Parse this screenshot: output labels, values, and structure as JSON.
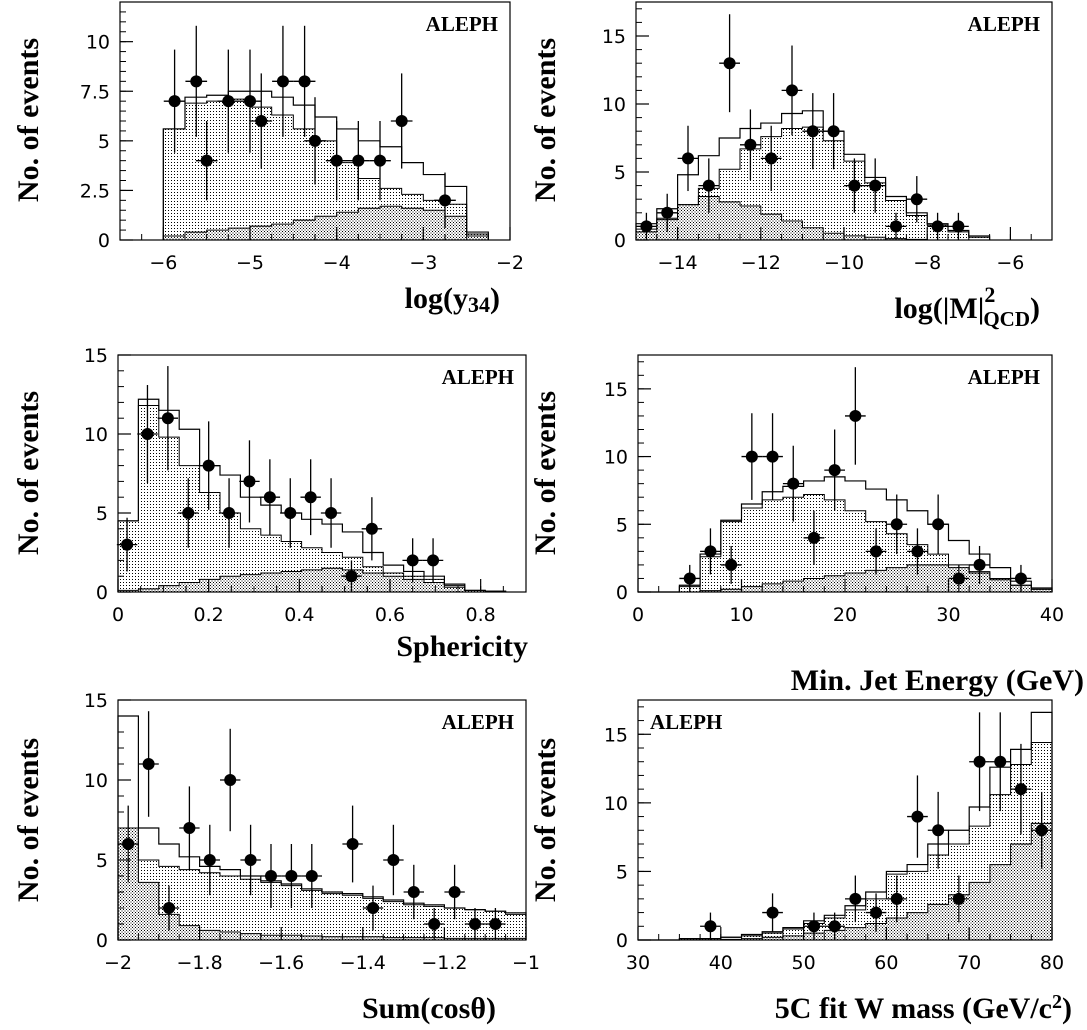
{
  "chart_data": [
    {
      "id": "p1",
      "type": "histogram",
      "experiment_label": "ALEPH",
      "label_corner": "top-right",
      "ylabel": "No. of events",
      "xlabel_main": "log(y",
      "xlabel_sub": "34",
      "xlabel_tail": ")",
      "xlim": [
        -6.5,
        -2
      ],
      "ylim": [
        0,
        12
      ],
      "xticks": [
        -6,
        -5,
        -4,
        -3,
        -2
      ],
      "xtick_labels": [
        "−6",
        "−5",
        "−4",
        "−3",
        "−2"
      ],
      "x_minor_step": 0.25,
      "yticks": [
        0,
        2.5,
        5,
        7.5,
        10
      ],
      "ytick_labels": [
        "0",
        "2.5",
        "5",
        "7.5",
        "10"
      ],
      "y_minor_step": 0.5,
      "bin_edges": [
        -6.0,
        -5.75,
        -5.5,
        -5.25,
        -5.0,
        -4.75,
        -4.5,
        -4.25,
        -4.0,
        -3.75,
        -3.5,
        -3.25,
        -3.0,
        -2.75,
        -2.5,
        -2.25
      ],
      "hist_total": [
        5.6,
        7.2,
        7.3,
        7.5,
        7.5,
        7.2,
        6.8,
        6.2,
        5.6,
        5.0,
        4.7,
        3.9,
        3.3,
        2.7,
        0.4
      ],
      "hist_middle": [
        5.6,
        6.9,
        7.0,
        7.1,
        6.7,
        6.3,
        5.6,
        5.0,
        3.9,
        3.1,
        2.6,
        2.3,
        2.0,
        1.8,
        0.3
      ],
      "hist_bottom": [
        0.2,
        0.4,
        0.5,
        0.6,
        0.7,
        0.8,
        1.0,
        1.2,
        1.4,
        1.6,
        1.7,
        1.6,
        1.5,
        1.2,
        0.2
      ],
      "points": {
        "x": [
          -5.87,
          -5.62,
          -5.5,
          -5.25,
          -5.0,
          -4.87,
          -4.62,
          -4.37,
          -4.25,
          -4.0,
          -3.75,
          -3.5,
          -3.25,
          -2.75
        ],
        "y": [
          7,
          8,
          4,
          7,
          7,
          6,
          8,
          8,
          5,
          4,
          4,
          4,
          6,
          2
        ],
        "err": [
          2.6,
          2.8,
          2.0,
          2.6,
          2.6,
          2.4,
          2.8,
          2.8,
          2.2,
          2.0,
          2.0,
          2.0,
          2.4,
          1.4
        ]
      }
    },
    {
      "id": "p2",
      "type": "histogram",
      "experiment_label": "ALEPH",
      "label_corner": "top-right",
      "ylabel": "No. of events",
      "xlabel_main": "log(|M|",
      "xlabel_sup": "2",
      "xlabel_sub": "QCD",
      "xlabel_tail": ")",
      "xlim": [
        -15,
        -5
      ],
      "ylim": [
        0,
        17.5
      ],
      "xticks": [
        -14,
        -12,
        -10,
        -8,
        -6
      ],
      "xtick_labels": [
        "−14",
        "−12",
        "−10",
        "−8",
        "−6"
      ],
      "x_minor_step": 0.5,
      "yticks": [
        0,
        5,
        10,
        15
      ],
      "ytick_labels": [
        "0",
        "5",
        "10",
        "15"
      ],
      "y_minor_step": 1,
      "bin_edges": [
        -15,
        -14.5,
        -14,
        -13.5,
        -13,
        -12.5,
        -12,
        -11.5,
        -11,
        -10.5,
        -10,
        -9.5,
        -9,
        -8.5,
        -8,
        -7.5,
        -7,
        -6.5
      ],
      "hist_total": [
        1.2,
        2.3,
        4.8,
        6.2,
        7.5,
        8.2,
        8.6,
        9.3,
        9.5,
        8.0,
        6.3,
        4.6,
        3.2,
        2.0,
        1.2,
        0.7,
        0.3
      ],
      "hist_middle": [
        0.8,
        1.6,
        2.6,
        3.8,
        5.2,
        6.7,
        7.6,
        8.2,
        8.3,
        7.3,
        5.8,
        4.2,
        2.9,
        1.8,
        1.1,
        0.6,
        0.2
      ],
      "hist_bottom": [
        0.6,
        1.5,
        2.6,
        3.2,
        2.8,
        2.5,
        1.9,
        1.4,
        0.9,
        0.5,
        0.3,
        0.2,
        0.1,
        0.05,
        0,
        0,
        0
      ],
      "points": {
        "x": [
          -14.75,
          -14.25,
          -13.75,
          -13.25,
          -12.75,
          -12.25,
          -11.75,
          -11.25,
          -10.75,
          -10.25,
          -9.75,
          -9.25,
          -8.75,
          -8.25,
          -7.75,
          -7.25
        ],
        "y": [
          1,
          2,
          6,
          4,
          13,
          7,
          6,
          11,
          8,
          8,
          4,
          4,
          1,
          3,
          1,
          1
        ],
        "err": [
          1.0,
          1.4,
          2.4,
          2.0,
          3.6,
          2.6,
          2.4,
          3.3,
          2.8,
          2.8,
          2.0,
          2.0,
          1.0,
          1.7,
          1.0,
          1.0
        ]
      }
    },
    {
      "id": "p3",
      "type": "histogram",
      "experiment_label": "ALEPH",
      "label_corner": "top-right",
      "ylabel": "No. of events",
      "xlabel_main": "Sphericity",
      "xlim": [
        0,
        0.9
      ],
      "ylim": [
        0,
        15
      ],
      "xticks": [
        0,
        0.2,
        0.4,
        0.6,
        0.8
      ],
      "xtick_labels": [
        "0",
        "0.2",
        "0.4",
        "0.6",
        "0.8"
      ],
      "x_minor_step": 0.05,
      "yticks": [
        0,
        5,
        10,
        15
      ],
      "ytick_labels": [
        "0",
        "5",
        "10",
        "15"
      ],
      "y_minor_step": 1,
      "bin_edges": [
        0,
        0.045,
        0.09,
        0.135,
        0.18,
        0.225,
        0.27,
        0.315,
        0.36,
        0.405,
        0.45,
        0.495,
        0.54,
        0.585,
        0.63,
        0.675,
        0.72,
        0.765,
        0.81,
        0.855
      ],
      "hist_total": [
        4.5,
        12.2,
        11.5,
        10.3,
        8.0,
        7.4,
        6.0,
        5.5,
        5.0,
        4.6,
        4.3,
        3.8,
        2.5,
        1.7,
        1.3,
        1.0,
        0.5,
        0.1,
        0.05
      ],
      "hist_middle": [
        4.5,
        11.8,
        9.8,
        8.0,
        6.3,
        5.0,
        4.0,
        3.6,
        3.2,
        2.8,
        2.5,
        2.2,
        1.6,
        1.2,
        1.0,
        0.8,
        0.4,
        0.1,
        0.05
      ],
      "hist_bottom": [
        0.1,
        0.2,
        0.4,
        0.6,
        0.8,
        1.0,
        1.1,
        1.2,
        1.3,
        1.4,
        1.5,
        1.4,
        1.2,
        1.0,
        0.8,
        0.6,
        0.3,
        0.1,
        0.05
      ],
      "points": {
        "x": [
          0.02,
          0.065,
          0.11,
          0.155,
          0.2,
          0.245,
          0.29,
          0.335,
          0.38,
          0.425,
          0.47,
          0.515,
          0.56,
          0.65,
          0.695
        ],
        "y": [
          3,
          10,
          11,
          5,
          8,
          5,
          7,
          6,
          5,
          6,
          5,
          1,
          4,
          2,
          2
        ],
        "err": [
          1.7,
          3.1,
          3.3,
          2.2,
          2.8,
          2.2,
          2.6,
          2.4,
          2.2,
          2.4,
          2.2,
          1.0,
          2.0,
          1.4,
          1.4
        ]
      }
    },
    {
      "id": "p4",
      "type": "histogram",
      "experiment_label": "ALEPH",
      "label_corner": "top-right",
      "ylabel": "No. of events",
      "xlabel_main": "Min. Jet Energy (GeV)",
      "xlim": [
        0,
        40
      ],
      "ylim": [
        0,
        17.5
      ],
      "xticks": [
        0,
        10,
        20,
        30,
        40
      ],
      "xtick_labels": [
        "0",
        "10",
        "20",
        "30",
        "40"
      ],
      "x_minor_step": 2,
      "yticks": [
        0,
        5,
        10,
        15
      ],
      "ytick_labels": [
        "0",
        "5",
        "10",
        "15"
      ],
      "y_minor_step": 1,
      "bin_edges": [
        0,
        2,
        4,
        6,
        8,
        10,
        12,
        14,
        16,
        18,
        20,
        22,
        24,
        26,
        28,
        30,
        32,
        34,
        36,
        38,
        40
      ],
      "hist_total": [
        0,
        0,
        0.5,
        2.8,
        5.3,
        6.5,
        7.4,
        7.8,
        8.2,
        8.5,
        8.2,
        7.6,
        6.8,
        6.0,
        5.0,
        3.8,
        2.8,
        1.8,
        0.8,
        0.3
      ],
      "hist_middle": [
        0,
        0,
        0.4,
        2.6,
        5.2,
        6.2,
        6.8,
        7.0,
        7.2,
        6.8,
        6.0,
        5.2,
        4.3,
        3.5,
        2.8,
        2.0,
        1.5,
        1.0,
        0.5,
        0.2
      ],
      "hist_bottom": [
        0,
        0,
        0,
        0.1,
        0.2,
        0.4,
        0.6,
        0.8,
        1.0,
        1.2,
        1.4,
        1.6,
        1.8,
        2.0,
        2.0,
        1.8,
        1.4,
        0.9,
        0.5,
        0.2
      ],
      "points": {
        "x": [
          5,
          7,
          9,
          11,
          13,
          15,
          17,
          19,
          21,
          23,
          25,
          27,
          29,
          31,
          33,
          37
        ],
        "y": [
          1,
          3,
          2,
          10,
          10,
          8,
          4,
          9,
          13,
          3,
          5,
          3,
          5,
          1,
          2,
          1
        ],
        "err": [
          1.0,
          1.7,
          1.4,
          3.2,
          3.2,
          2.8,
          2.0,
          3.0,
          3.6,
          1.7,
          2.2,
          1.7,
          2.2,
          1.0,
          1.4,
          1.0
        ]
      }
    },
    {
      "id": "p5",
      "type": "histogram",
      "experiment_label": "ALEPH",
      "label_corner": "top-right",
      "ylabel": "No. of events",
      "xlabel_main": "Sum(cosθ)",
      "xlim": [
        -2,
        -1
      ],
      "ylim": [
        0,
        15
      ],
      "xticks": [
        -2,
        -1.8,
        -1.6,
        -1.4,
        -1.2,
        -1
      ],
      "xtick_labels": [
        "−2",
        "−1.8",
        "−1.6",
        "−1.4",
        "−1.2",
        "−1"
      ],
      "x_minor_step": 0.05,
      "yticks": [
        0,
        5,
        10,
        15
      ],
      "ytick_labels": [
        "0",
        "5",
        "10",
        "15"
      ],
      "y_minor_step": 1,
      "bin_edges": [
        -2.0,
        -1.95,
        -1.9,
        -1.85,
        -1.8,
        -1.75,
        -1.7,
        -1.65,
        -1.6,
        -1.55,
        -1.5,
        -1.45,
        -1.4,
        -1.35,
        -1.3,
        -1.25,
        -1.2,
        -1.15,
        -1.1,
        -1.05,
        -1.0
      ],
      "hist_total": [
        14.0,
        7.0,
        6.0,
        5.2,
        4.6,
        4.4,
        4.0,
        3.7,
        3.5,
        3.2,
        3.0,
        2.9,
        2.7,
        2.5,
        2.3,
        2.2,
        2.0,
        1.9,
        1.8,
        1.7
      ],
      "hist_middle": [
        7.0,
        5.0,
        4.6,
        4.4,
        4.2,
        4.0,
        3.8,
        3.6,
        3.4,
        3.1,
        2.9,
        2.8,
        2.6,
        2.4,
        2.2,
        2.1,
        2.0,
        1.9,
        1.8,
        1.6
      ],
      "hist_bottom": [
        7.0,
        3.6,
        1.6,
        0.9,
        0.6,
        0.5,
        0.4,
        0.3,
        0.3,
        0.25,
        0.2,
        0.2,
        0.2,
        0.15,
        0.15,
        0.15,
        0.1,
        0.1,
        0.1,
        0.1
      ],
      "points": {
        "x": [
          -1.975,
          -1.925,
          -1.875,
          -1.825,
          -1.775,
          -1.725,
          -1.675,
          -1.625,
          -1.575,
          -1.525,
          -1.425,
          -1.375,
          -1.325,
          -1.275,
          -1.225,
          -1.175,
          -1.125,
          -1.075
        ],
        "y": [
          6,
          11,
          2,
          7,
          5,
          10,
          5,
          4,
          4,
          4,
          6,
          2,
          5,
          3,
          1,
          3,
          1,
          1
        ],
        "err": [
          2.4,
          3.3,
          1.4,
          2.6,
          2.2,
          3.2,
          2.2,
          2.0,
          2.0,
          2.0,
          2.4,
          1.4,
          2.2,
          1.7,
          1.0,
          1.7,
          1.0,
          1.0
        ]
      }
    },
    {
      "id": "p6",
      "type": "histogram",
      "experiment_label": "ALEPH",
      "label_corner": "top-left",
      "ylabel": "No. of events",
      "xlabel_main": "5C fit W mass (GeV/c",
      "xlabel_sup": "2",
      "xlabel_tail": ")",
      "xlim": [
        30,
        80
      ],
      "ylim": [
        0,
        17.5
      ],
      "xticks": [
        30,
        40,
        50,
        60,
        70,
        80
      ],
      "xtick_labels": [
        "30",
        "40",
        "50",
        "60",
        "70",
        "80"
      ],
      "x_minor_step": 2.5,
      "yticks": [
        0,
        5,
        10,
        15
      ],
      "ytick_labels": [
        "0",
        "5",
        "10",
        "15"
      ],
      "y_minor_step": 1,
      "bin_edges": [
        30,
        32.5,
        35,
        37.5,
        40,
        42.5,
        45,
        47.5,
        50,
        52.5,
        55,
        57.5,
        60,
        62.5,
        65,
        67.5,
        70,
        72.5,
        75,
        77.5,
        80
      ],
      "hist_total": [
        0,
        0,
        0.1,
        0.1,
        0.2,
        0.4,
        0.6,
        0.9,
        1.4,
        1.8,
        2.5,
        3.5,
        5.0,
        5.5,
        7.0,
        8.0,
        9.7,
        12.6,
        13.9,
        16.6
      ],
      "hist_middle": [
        0,
        0,
        0.1,
        0.1,
        0.2,
        0.3,
        0.5,
        0.8,
        1.2,
        1.6,
        2.2,
        3.0,
        4.8,
        5.0,
        6.2,
        7.0,
        8.3,
        10.6,
        12.8,
        14.4
      ],
      "hist_bottom": [
        0,
        0,
        0,
        0,
        0.05,
        0.1,
        0.2,
        0.3,
        0.5,
        0.7,
        0.9,
        1.2,
        1.6,
        2.0,
        2.6,
        3.3,
        4.2,
        5.5,
        7.0,
        8.5
      ],
      "points": {
        "x": [
          38.75,
          46.25,
          51.25,
          53.75,
          56.25,
          58.75,
          61.25,
          63.75,
          66.25,
          68.75,
          71.25,
          73.75,
          76.25,
          78.75
        ],
        "y": [
          1,
          2,
          1,
          1,
          3,
          2,
          3,
          9,
          8,
          3,
          13,
          13,
          11,
          8
        ],
        "err": [
          1.0,
          1.4,
          1.0,
          1.0,
          1.7,
          1.4,
          1.7,
          3.0,
          2.8,
          1.7,
          3.6,
          3.6,
          3.3,
          2.8
        ]
      }
    }
  ]
}
